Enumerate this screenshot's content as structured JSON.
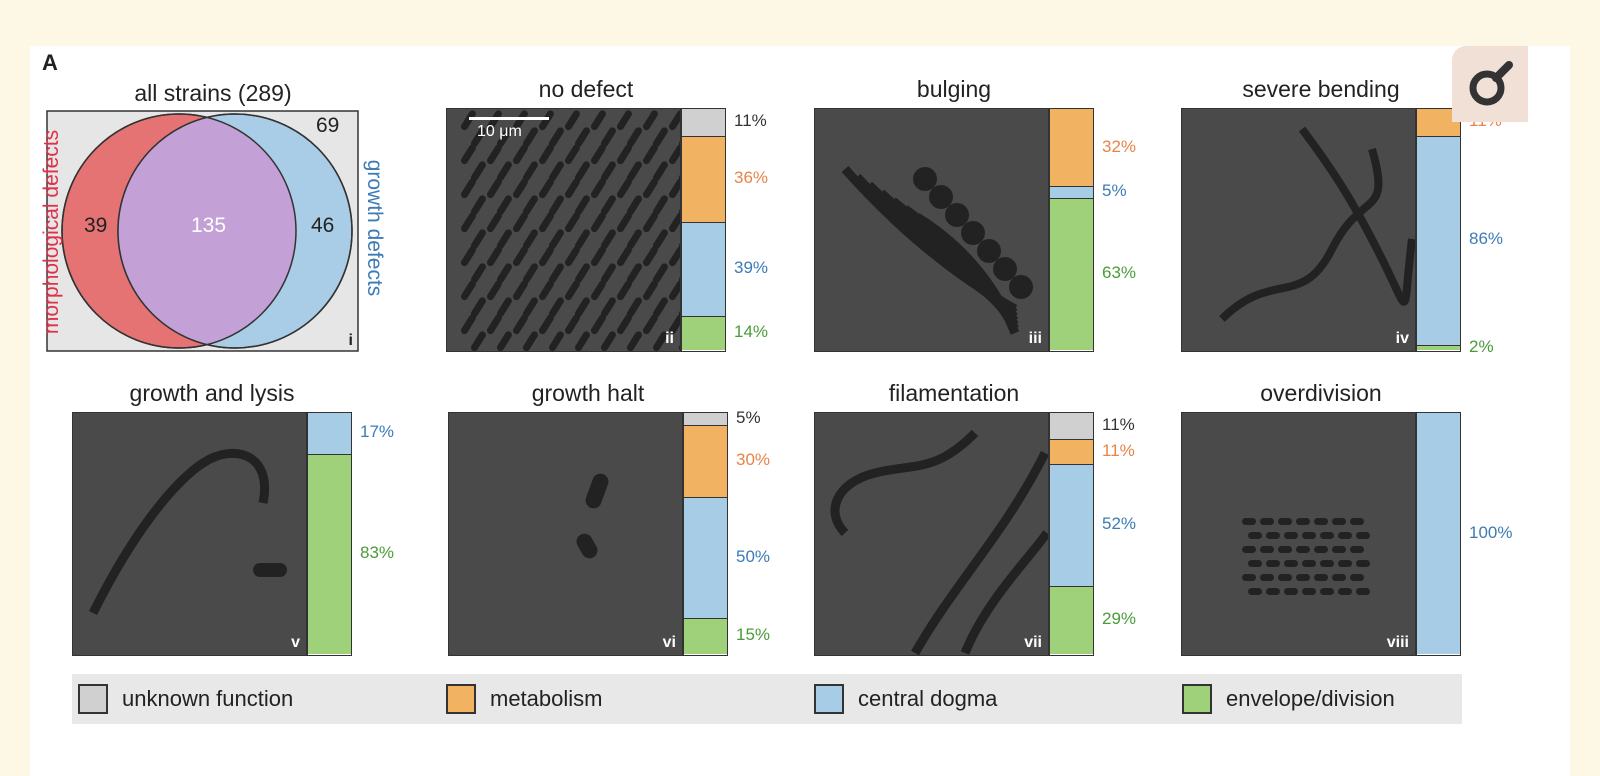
{
  "panel_letter": "A",
  "venn": {
    "title": "all strains (289)",
    "left_label": "morphological defects",
    "right_label": "growth defects",
    "only_morph": "39",
    "both": "135",
    "only_growth": "46",
    "neither": "69",
    "roman": "i",
    "colors": {
      "left": "#e57373",
      "right": "#a9cde6",
      "overlap": "#c3a0d6",
      "background": "#e6e6e6"
    }
  },
  "categories": [
    {
      "key": "unknown",
      "label": "unknown function",
      "color": "#d0d0d0",
      "text_color": "#333333"
    },
    {
      "key": "metabolism",
      "label": "metabolism",
      "color": "#f1b262",
      "text_color": "#e8834a"
    },
    {
      "key": "dogma",
      "label": "central dogma",
      "color": "#a7cde6",
      "text_color": "#3d7bb6"
    },
    {
      "key": "envelope",
      "label": "envelope/division",
      "color": "#9fd07a",
      "text_color": "#4a9c3a"
    }
  ],
  "scale_bar": "10 μm",
  "panels": [
    {
      "title": "no defect",
      "roman": "ii",
      "segments": [
        {
          "cat": "unknown",
          "value": 11,
          "label": "11%"
        },
        {
          "cat": "metabolism",
          "value": 36,
          "label": "36%"
        },
        {
          "cat": "dogma",
          "value": 39,
          "label": "39%"
        },
        {
          "cat": "envelope",
          "value": 14,
          "label": "14%"
        }
      ]
    },
    {
      "title": "bulging",
      "roman": "iii",
      "segments": [
        {
          "cat": "metabolism",
          "value": 32,
          "label": "32%"
        },
        {
          "cat": "dogma",
          "value": 5,
          "label": "5%"
        },
        {
          "cat": "envelope",
          "value": 63,
          "label": "63%"
        }
      ]
    },
    {
      "title": "severe bending",
      "roman": "iv",
      "segments": [
        {
          "cat": "metabolism",
          "value": 11,
          "label": "11%"
        },
        {
          "cat": "dogma",
          "value": 86,
          "label": "86%"
        },
        {
          "cat": "envelope",
          "value": 2,
          "label": "2%"
        }
      ]
    },
    {
      "title": "growth and lysis",
      "roman": "v",
      "segments": [
        {
          "cat": "dogma",
          "value": 17,
          "label": "17%"
        },
        {
          "cat": "envelope",
          "value": 83,
          "label": "83%"
        }
      ]
    },
    {
      "title": "growth halt",
      "roman": "vi",
      "segments": [
        {
          "cat": "unknown",
          "value": 5,
          "label": "5%"
        },
        {
          "cat": "metabolism",
          "value": 30,
          "label": "30%"
        },
        {
          "cat": "dogma",
          "value": 50,
          "label": "50%"
        },
        {
          "cat": "envelope",
          "value": 15,
          "label": "15%"
        }
      ]
    },
    {
      "title": "filamentation",
      "roman": "vii",
      "segments": [
        {
          "cat": "unknown",
          "value": 11,
          "label": "11%"
        },
        {
          "cat": "metabolism",
          "value": 11,
          "label": "11%"
        },
        {
          "cat": "dogma",
          "value": 52,
          "label": "52%"
        },
        {
          "cat": "envelope",
          "value": 29,
          "label": "29%"
        }
      ]
    },
    {
      "title": "overdivision",
      "roman": "viii",
      "segments": [
        {
          "cat": "dogma",
          "value": 100,
          "label": "100%"
        }
      ]
    }
  ],
  "corner_button": {
    "icon": "magnifier-icon"
  }
}
